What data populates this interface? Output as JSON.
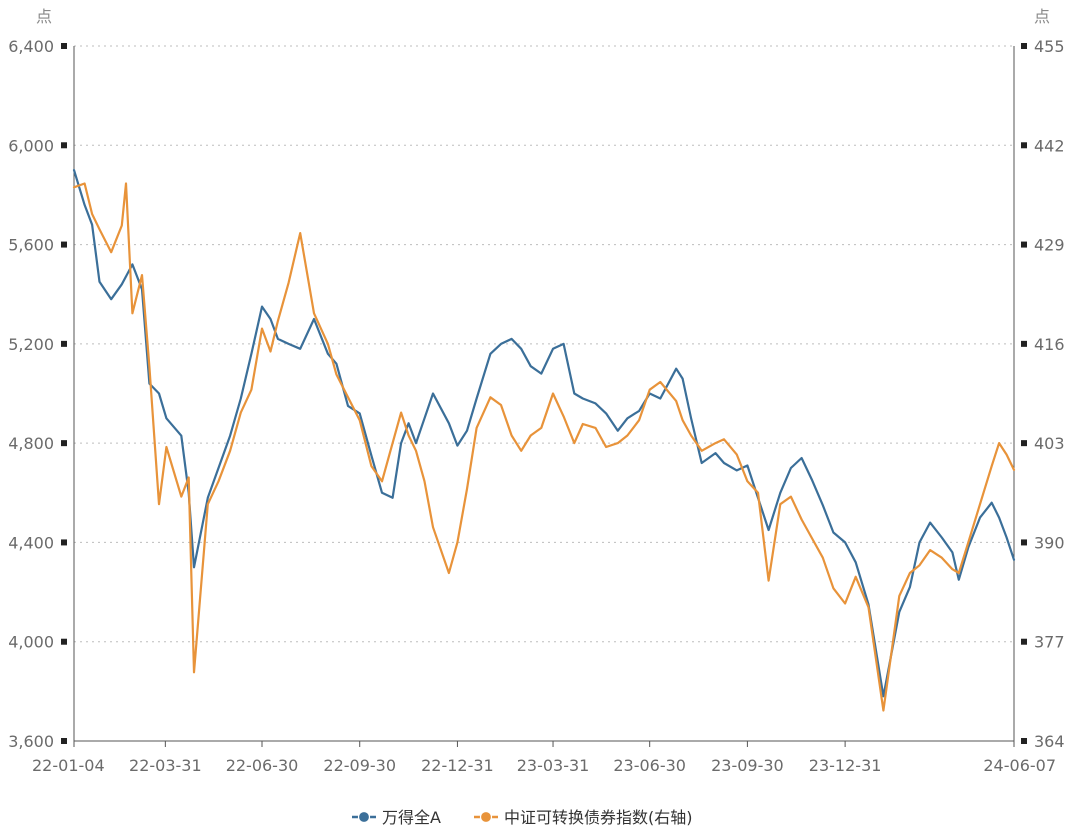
{
  "chart_data": {
    "type": "line",
    "y_left": {
      "unit": "点",
      "ticks": [
        "3,600",
        "4,000",
        "4,400",
        "4,800",
        "5,200",
        "5,600",
        "6,000",
        "6,400"
      ],
      "range": [
        3600,
        6400
      ]
    },
    "y_right": {
      "unit": "点",
      "ticks": [
        "364",
        "377",
        "390",
        "403",
        "416",
        "429",
        "442",
        "455"
      ],
      "range": [
        364,
        455
      ]
    },
    "x_ticks": [
      "22-01-04",
      "22-03-31",
      "22-06-30",
      "22-09-30",
      "22-12-31",
      "23-03-31",
      "23-06-30",
      "23-09-30",
      "23-12-31",
      "24-06-07"
    ],
    "legend": {
      "position": "bottom-center"
    },
    "grid": "horizontal-dotted",
    "series": [
      {
        "name": "万得全A",
        "axis": "left",
        "color": "#3b6f99",
        "points": [
          [
            "22-01-04",
            5900
          ],
          [
            "22-01-14",
            5760
          ],
          [
            "22-01-21",
            5680
          ],
          [
            "22-01-28",
            5450
          ],
          [
            "22-02-08",
            5380
          ],
          [
            "22-02-18",
            5440
          ],
          [
            "22-02-28",
            5520
          ],
          [
            "22-03-09",
            5420
          ],
          [
            "22-03-16",
            5040
          ],
          [
            "22-03-25",
            5000
          ],
          [
            "22-04-01",
            4900
          ],
          [
            "22-04-15",
            4830
          ],
          [
            "22-04-22",
            4600
          ],
          [
            "22-04-27",
            4300
          ],
          [
            "22-05-10",
            4580
          ],
          [
            "22-05-20",
            4700
          ],
          [
            "22-05-31",
            4830
          ],
          [
            "22-06-10",
            4980
          ],
          [
            "22-06-20",
            5160
          ],
          [
            "22-06-30",
            5350
          ],
          [
            "22-07-08",
            5300
          ],
          [
            "22-07-15",
            5220
          ],
          [
            "22-07-25",
            5200
          ],
          [
            "22-08-05",
            5180
          ],
          [
            "22-08-18",
            5300
          ],
          [
            "22-08-31",
            5160
          ],
          [
            "22-09-08",
            5120
          ],
          [
            "22-09-19",
            4950
          ],
          [
            "22-09-30",
            4920
          ],
          [
            "22-10-11",
            4750
          ],
          [
            "22-10-21",
            4600
          ],
          [
            "22-10-31",
            4580
          ],
          [
            "22-11-08",
            4800
          ],
          [
            "22-11-15",
            4880
          ],
          [
            "22-11-22",
            4800
          ],
          [
            "22-11-30",
            4900
          ],
          [
            "22-12-08",
            5000
          ],
          [
            "22-12-23",
            4880
          ],
          [
            "22-12-31",
            4790
          ],
          [
            "23-01-09",
            4850
          ],
          [
            "23-01-18",
            4980
          ],
          [
            "23-01-31",
            5160
          ],
          [
            "23-02-10",
            5200
          ],
          [
            "23-02-20",
            5220
          ],
          [
            "23-03-01",
            5180
          ],
          [
            "23-03-10",
            5110
          ],
          [
            "23-03-20",
            5080
          ],
          [
            "23-03-31",
            5180
          ],
          [
            "23-04-10",
            5200
          ],
          [
            "23-04-20",
            5000
          ],
          [
            "23-04-28",
            4980
          ],
          [
            "23-05-10",
            4960
          ],
          [
            "23-05-20",
            4920
          ],
          [
            "23-05-31",
            4850
          ],
          [
            "23-06-09",
            4900
          ],
          [
            "23-06-20",
            4930
          ],
          [
            "23-06-30",
            5000
          ],
          [
            "23-07-10",
            4980
          ],
          [
            "23-07-25",
            5100
          ],
          [
            "23-07-31",
            5060
          ],
          [
            "23-08-08",
            4900
          ],
          [
            "23-08-18",
            4720
          ],
          [
            "23-08-31",
            4760
          ],
          [
            "23-09-08",
            4720
          ],
          [
            "23-09-20",
            4690
          ],
          [
            "23-09-30",
            4710
          ],
          [
            "23-10-10",
            4580
          ],
          [
            "23-10-20",
            4450
          ],
          [
            "23-10-31",
            4600
          ],
          [
            "23-11-10",
            4700
          ],
          [
            "23-11-20",
            4740
          ],
          [
            "23-11-30",
            4650
          ],
          [
            "23-12-10",
            4550
          ],
          [
            "23-12-20",
            4440
          ],
          [
            "23-12-31",
            4400
          ],
          [
            "24-01-10",
            4320
          ],
          [
            "24-01-22",
            4150
          ],
          [
            "24-02-05",
            3780
          ],
          [
            "24-02-20",
            4120
          ],
          [
            "24-03-01",
            4220
          ],
          [
            "24-03-10",
            4400
          ],
          [
            "24-03-20",
            4480
          ],
          [
            "24-03-31",
            4420
          ],
          [
            "24-04-10",
            4360
          ],
          [
            "24-04-16",
            4250
          ],
          [
            "24-04-25",
            4380
          ],
          [
            "24-05-06",
            4500
          ],
          [
            "24-05-17",
            4560
          ],
          [
            "24-05-24",
            4500
          ],
          [
            "24-05-31",
            4420
          ],
          [
            "24-06-07",
            4330
          ]
        ]
      },
      {
        "name": "中证可转换债券指数(右轴)",
        "axis": "right",
        "color": "#e8933a",
        "points": [
          [
            "22-01-04",
            436.5
          ],
          [
            "22-01-14",
            437.0
          ],
          [
            "22-01-21",
            433.0
          ],
          [
            "22-01-28",
            431.0
          ],
          [
            "22-02-08",
            428.0
          ],
          [
            "22-02-18",
            431.5
          ],
          [
            "22-02-22",
            437.0
          ],
          [
            "22-02-28",
            420.0
          ],
          [
            "22-03-09",
            425.0
          ],
          [
            "22-03-16",
            413.0
          ],
          [
            "22-03-25",
            395.0
          ],
          [
            "22-04-01",
            402.5
          ],
          [
            "22-04-15",
            396.0
          ],
          [
            "22-04-22",
            398.5
          ],
          [
            "22-04-27",
            373.0
          ],
          [
            "22-05-10",
            395.0
          ],
          [
            "22-05-20",
            398.0
          ],
          [
            "22-05-31",
            402.0
          ],
          [
            "22-06-10",
            407.0
          ],
          [
            "22-06-20",
            410.0
          ],
          [
            "22-06-30",
            418.0
          ],
          [
            "22-07-08",
            415.0
          ],
          [
            "22-07-15",
            419.0
          ],
          [
            "22-07-25",
            424.0
          ],
          [
            "22-08-05",
            430.5
          ],
          [
            "22-08-18",
            420.0
          ],
          [
            "22-08-31",
            416.0
          ],
          [
            "22-09-08",
            412.0
          ],
          [
            "22-09-19",
            409.0
          ],
          [
            "22-09-30",
            406.0
          ],
          [
            "22-10-11",
            400.0
          ],
          [
            "22-10-21",
            398.0
          ],
          [
            "22-10-31",
            403.0
          ],
          [
            "22-11-08",
            407.0
          ],
          [
            "22-11-15",
            404.0
          ],
          [
            "22-11-22",
            402.0
          ],
          [
            "22-11-30",
            398.0
          ],
          [
            "22-12-08",
            392.0
          ],
          [
            "22-12-23",
            386.0
          ],
          [
            "22-12-31",
            390.0
          ],
          [
            "23-01-09",
            397.0
          ],
          [
            "23-01-18",
            405.0
          ],
          [
            "23-01-31",
            409.0
          ],
          [
            "23-02-10",
            408.0
          ],
          [
            "23-02-20",
            404.0
          ],
          [
            "23-03-01",
            402.0
          ],
          [
            "23-03-10",
            404.0
          ],
          [
            "23-03-20",
            405.0
          ],
          [
            "23-03-31",
            409.5
          ],
          [
            "23-04-10",
            406.5
          ],
          [
            "23-04-20",
            403.0
          ],
          [
            "23-04-28",
            405.5
          ],
          [
            "23-05-10",
            405.0
          ],
          [
            "23-05-20",
            402.5
          ],
          [
            "23-05-31",
            403.0
          ],
          [
            "23-06-09",
            404.0
          ],
          [
            "23-06-20",
            406.0
          ],
          [
            "23-06-30",
            410.0
          ],
          [
            "23-07-10",
            411.0
          ],
          [
            "23-07-25",
            408.5
          ],
          [
            "23-07-31",
            406.0
          ],
          [
            "23-08-08",
            404.0
          ],
          [
            "23-08-18",
            402.0
          ],
          [
            "23-08-31",
            403.0
          ],
          [
            "23-09-08",
            403.5
          ],
          [
            "23-09-20",
            401.5
          ],
          [
            "23-09-30",
            398.0
          ],
          [
            "23-10-10",
            396.5
          ],
          [
            "23-10-20",
            385.0
          ],
          [
            "23-10-31",
            395.0
          ],
          [
            "23-11-10",
            396.0
          ],
          [
            "23-11-20",
            393.0
          ],
          [
            "23-11-30",
            390.5
          ],
          [
            "23-12-10",
            388.0
          ],
          [
            "23-12-20",
            384.0
          ],
          [
            "23-12-31",
            382.0
          ],
          [
            "24-01-10",
            385.5
          ],
          [
            "24-01-22",
            381.5
          ],
          [
            "24-02-05",
            368.0
          ],
          [
            "24-02-20",
            383.0
          ],
          [
            "24-03-01",
            386.0
          ],
          [
            "24-03-10",
            387.0
          ],
          [
            "24-03-20",
            389.0
          ],
          [
            "24-03-31",
            388.0
          ],
          [
            "24-04-10",
            386.5
          ],
          [
            "24-04-16",
            386.0
          ],
          [
            "24-04-25",
            390.0
          ],
          [
            "24-05-06",
            395.0
          ],
          [
            "24-05-17",
            400.0
          ],
          [
            "24-05-24",
            403.0
          ],
          [
            "24-05-31",
            401.5
          ],
          [
            "24-06-07",
            399.5
          ]
        ]
      }
    ]
  }
}
